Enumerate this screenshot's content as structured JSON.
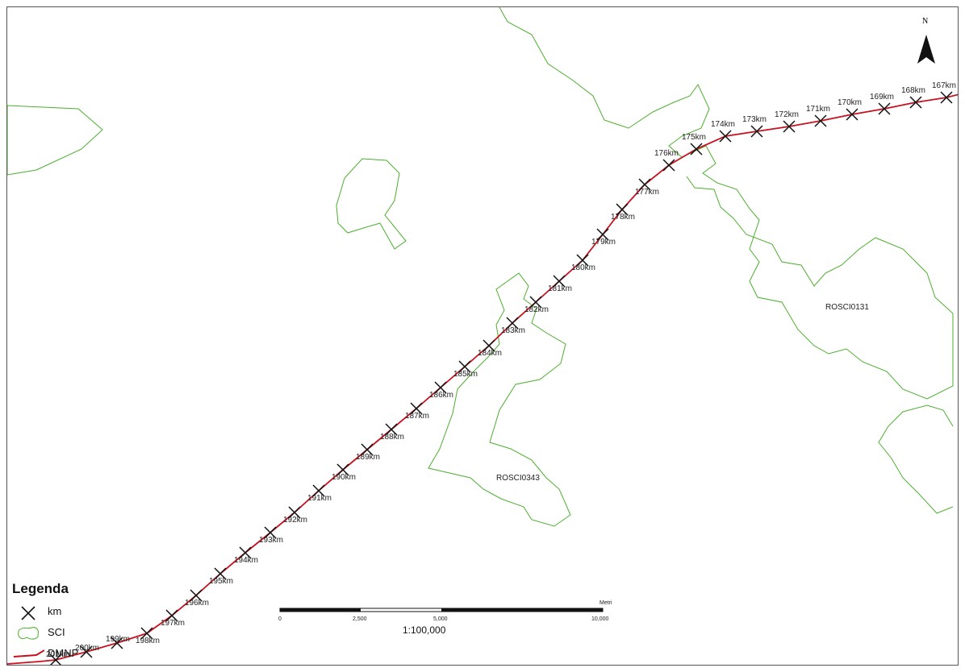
{
  "map": {
    "scale_ratio": "1:100,000",
    "scale_unit": "Metri",
    "scale_ticks": [
      "0",
      "2,500",
      "5,000",
      "10,000"
    ],
    "north_label": "N",
    "colors": {
      "route": "#c8101e",
      "sci": "#4caf2e",
      "marker": "#111111"
    }
  },
  "legend": {
    "title": "Legenda",
    "items": [
      {
        "label": "km",
        "icon": "x-marker-icon"
      },
      {
        "label": "SCI",
        "icon": "polygon-icon"
      },
      {
        "label": "DMNP",
        "icon": "line-icon"
      }
    ]
  },
  "sci_areas": [
    {
      "label": "ROSCI0131"
    },
    {
      "label": "ROSCI0343"
    }
  ],
  "km_markers": [
    {
      "label": "167km"
    },
    {
      "label": "168km"
    },
    {
      "label": "169km"
    },
    {
      "label": "170km"
    },
    {
      "label": "171km"
    },
    {
      "label": "172km"
    },
    {
      "label": "173km"
    },
    {
      "label": "174km"
    },
    {
      "label": "175km"
    },
    {
      "label": "176km"
    },
    {
      "label": "177km"
    },
    {
      "label": "178km"
    },
    {
      "label": "179km"
    },
    {
      "label": "180km"
    },
    {
      "label": "181km"
    },
    {
      "label": "182km"
    },
    {
      "label": "183km"
    },
    {
      "label": "184km"
    },
    {
      "label": "185km"
    },
    {
      "label": "186km"
    },
    {
      "label": "187km"
    },
    {
      "label": "188km"
    },
    {
      "label": "189km"
    },
    {
      "label": "190km"
    },
    {
      "label": "191km"
    },
    {
      "label": "192km"
    },
    {
      "label": "193km"
    },
    {
      "label": "194km"
    },
    {
      "label": "195km"
    },
    {
      "label": "196km"
    },
    {
      "label": "197km"
    },
    {
      "label": "198km"
    },
    {
      "label": "199km"
    },
    {
      "label": "200km"
    },
    {
      "label": "201km"
    }
  ]
}
